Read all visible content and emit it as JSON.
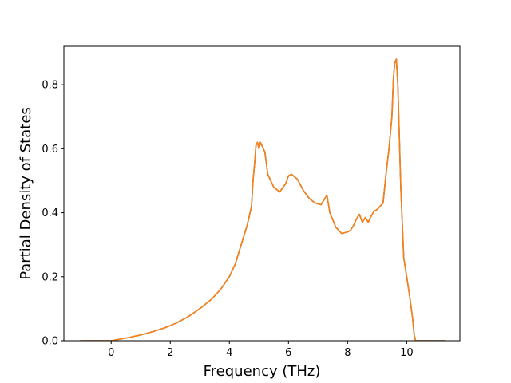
{
  "chart_data": {
    "type": "line",
    "title": "",
    "xlabel": "Frequency (THz)",
    "ylabel": "Partial Density of States",
    "xlim": [
      -1.6,
      11.8
    ],
    "ylim": [
      0.0,
      0.92
    ],
    "xticks": [
      0,
      2,
      4,
      6,
      8,
      10
    ],
    "xtick_labels": [
      "0",
      "2",
      "4",
      "6",
      "8",
      "10"
    ],
    "yticks": [
      0.0,
      0.2,
      0.4,
      0.6,
      0.8
    ],
    "ytick_labels": [
      "0.0",
      "0.2",
      "0.4",
      "0.6",
      "0.8"
    ],
    "grid": false,
    "legend": "none",
    "series": [
      {
        "color": "#1f77b4",
        "x": [
          -1.05,
          -0.5,
          0.0,
          0.3,
          0.6,
          1.0,
          1.4,
          1.8,
          2.2,
          2.6,
          3.0,
          3.4,
          3.7,
          4.0,
          4.2,
          4.4,
          4.6,
          4.75,
          4.8,
          4.85,
          4.9,
          4.95,
          5.0,
          5.05,
          5.1,
          5.2,
          5.3,
          5.5,
          5.7,
          5.9,
          6.0,
          6.1,
          6.3,
          6.5,
          6.7,
          6.9,
          7.1,
          7.2,
          7.3,
          7.4,
          7.6,
          7.8,
          8.0,
          8.1,
          8.2,
          8.3,
          8.4,
          8.5,
          8.6,
          8.7,
          8.8,
          8.9,
          9.0,
          9.1,
          9.2,
          9.3,
          9.4,
          9.5,
          9.55,
          9.6,
          9.65,
          9.7,
          9.8,
          9.9,
          10.0,
          10.1,
          10.2,
          10.25,
          10.3,
          11.3
        ],
        "y": [
          0.0,
          0.0,
          0.0,
          0.005,
          0.01,
          0.018,
          0.028,
          0.04,
          0.055,
          0.075,
          0.1,
          0.13,
          0.16,
          0.2,
          0.24,
          0.3,
          0.36,
          0.42,
          0.5,
          0.55,
          0.61,
          0.62,
          0.6,
          0.62,
          0.61,
          0.59,
          0.52,
          0.48,
          0.465,
          0.49,
          0.515,
          0.52,
          0.505,
          0.47,
          0.445,
          0.43,
          0.425,
          0.44,
          0.455,
          0.4,
          0.355,
          0.335,
          0.34,
          0.345,
          0.36,
          0.38,
          0.395,
          0.37,
          0.385,
          0.37,
          0.39,
          0.405,
          0.41,
          0.42,
          0.43,
          0.52,
          0.6,
          0.7,
          0.82,
          0.87,
          0.88,
          0.8,
          0.48,
          0.26,
          0.2,
          0.14,
          0.07,
          0.02,
          0.0,
          0.0
        ]
      },
      {
        "color": "#ff7f0e",
        "x": [
          -1.05,
          -0.5,
          0.0,
          0.3,
          0.6,
          1.0,
          1.4,
          1.8,
          2.2,
          2.6,
          3.0,
          3.4,
          3.7,
          4.0,
          4.2,
          4.4,
          4.6,
          4.75,
          4.8,
          4.85,
          4.9,
          4.95,
          5.0,
          5.05,
          5.1,
          5.2,
          5.3,
          5.5,
          5.7,
          5.9,
          6.0,
          6.1,
          6.3,
          6.5,
          6.7,
          6.9,
          7.1,
          7.2,
          7.3,
          7.4,
          7.6,
          7.8,
          8.0,
          8.1,
          8.2,
          8.3,
          8.4,
          8.5,
          8.6,
          8.7,
          8.8,
          8.9,
          9.0,
          9.1,
          9.2,
          9.3,
          9.4,
          9.5,
          9.55,
          9.6,
          9.65,
          9.7,
          9.8,
          9.9,
          10.0,
          10.1,
          10.2,
          10.25,
          10.3,
          11.3
        ],
        "y": [
          0.0,
          0.0,
          0.0,
          0.005,
          0.01,
          0.018,
          0.028,
          0.04,
          0.055,
          0.075,
          0.1,
          0.13,
          0.16,
          0.2,
          0.24,
          0.3,
          0.36,
          0.42,
          0.5,
          0.55,
          0.61,
          0.62,
          0.6,
          0.62,
          0.61,
          0.59,
          0.52,
          0.48,
          0.465,
          0.49,
          0.515,
          0.52,
          0.505,
          0.47,
          0.445,
          0.43,
          0.425,
          0.44,
          0.455,
          0.4,
          0.355,
          0.335,
          0.34,
          0.345,
          0.36,
          0.38,
          0.395,
          0.37,
          0.385,
          0.37,
          0.39,
          0.405,
          0.41,
          0.42,
          0.43,
          0.52,
          0.6,
          0.7,
          0.82,
          0.87,
          0.88,
          0.8,
          0.48,
          0.26,
          0.2,
          0.14,
          0.07,
          0.02,
          0.0,
          0.0
        ]
      }
    ]
  }
}
